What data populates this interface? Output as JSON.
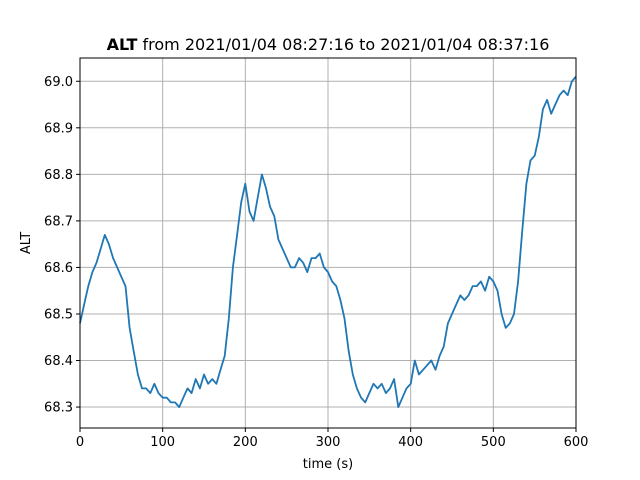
{
  "chart_data": {
    "type": "line",
    "title_bold": "ALT",
    "title_rest": " from 2021/01/04 08:27:16 to 2021/01/04 08:37:16",
    "xlabel": "time (s)",
    "ylabel": "ALT",
    "xlim": [
      0,
      600
    ],
    "ylim": [
      68.255,
      69.05
    ],
    "xticks": [
      0,
      100,
      200,
      300,
      400,
      500,
      600
    ],
    "xtick_labels": [
      "0",
      "100",
      "200",
      "300",
      "400",
      "500",
      "600"
    ],
    "yticks": [
      68.3,
      68.4,
      68.5,
      68.6,
      68.7,
      68.8,
      68.9,
      69.0
    ],
    "ytick_labels": [
      "68.3",
      "68.4",
      "68.5",
      "68.6",
      "68.7",
      "68.8",
      "68.9",
      "69.0"
    ],
    "grid": true,
    "line_color": "#1f77b4",
    "series": [
      {
        "x": [
          0,
          5,
          10,
          15,
          20,
          25,
          30,
          35,
          40,
          45,
          50,
          55,
          60,
          65,
          70,
          75,
          80,
          85,
          90,
          95,
          100,
          105,
          110,
          115,
          120,
          125,
          130,
          135,
          140,
          145,
          150,
          155,
          160,
          165,
          170,
          175,
          180,
          185,
          190,
          195,
          200,
          205,
          210,
          215,
          220,
          225,
          230,
          235,
          240,
          245,
          250,
          255,
          260,
          265,
          270,
          275,
          280,
          285,
          290,
          295,
          300,
          305,
          310,
          315,
          320,
          325,
          330,
          335,
          340,
          345,
          350,
          355,
          360,
          365,
          370,
          375,
          380,
          385,
          390,
          395,
          400,
          405,
          410,
          415,
          420,
          425,
          430,
          435,
          440,
          445,
          450,
          455,
          460,
          465,
          470,
          475,
          480,
          485,
          490,
          495,
          500,
          505,
          510,
          515,
          520,
          525,
          530,
          535,
          540,
          545,
          550,
          555,
          560,
          565,
          570,
          575,
          580,
          585,
          590,
          595,
          600
        ],
        "y": [
          68.48,
          68.52,
          68.56,
          68.59,
          68.61,
          68.64,
          68.67,
          68.65,
          68.62,
          68.6,
          68.58,
          68.56,
          68.47,
          68.42,
          68.37,
          68.34,
          68.34,
          68.33,
          68.35,
          68.33,
          68.32,
          68.32,
          68.31,
          68.31,
          68.3,
          68.32,
          68.34,
          68.33,
          68.36,
          68.34,
          68.37,
          68.35,
          68.36,
          68.35,
          68.38,
          68.41,
          68.49,
          68.6,
          68.67,
          68.74,
          68.78,
          68.72,
          68.7,
          68.75,
          68.8,
          68.77,
          68.73,
          68.71,
          68.66,
          68.64,
          68.62,
          68.6,
          68.6,
          68.62,
          68.61,
          68.59,
          68.62,
          68.62,
          68.63,
          68.6,
          68.59,
          68.57,
          68.56,
          68.53,
          68.49,
          68.42,
          68.37,
          68.34,
          68.32,
          68.31,
          68.33,
          68.35,
          68.34,
          68.35,
          68.33,
          68.34,
          68.36,
          68.3,
          68.32,
          68.34,
          68.35,
          68.4,
          68.37,
          68.38,
          68.39,
          68.4,
          68.38,
          68.41,
          68.43,
          68.48,
          68.5,
          68.52,
          68.54,
          68.53,
          68.54,
          68.56,
          68.56,
          68.57,
          68.55,
          68.58,
          68.57,
          68.55,
          68.5,
          68.47,
          68.48,
          68.5,
          68.57,
          68.68,
          68.78,
          68.83,
          68.84,
          68.88,
          68.94,
          68.96,
          68.93,
          68.95,
          68.97,
          68.98,
          68.97,
          69.0,
          69.01
        ]
      }
    ]
  }
}
